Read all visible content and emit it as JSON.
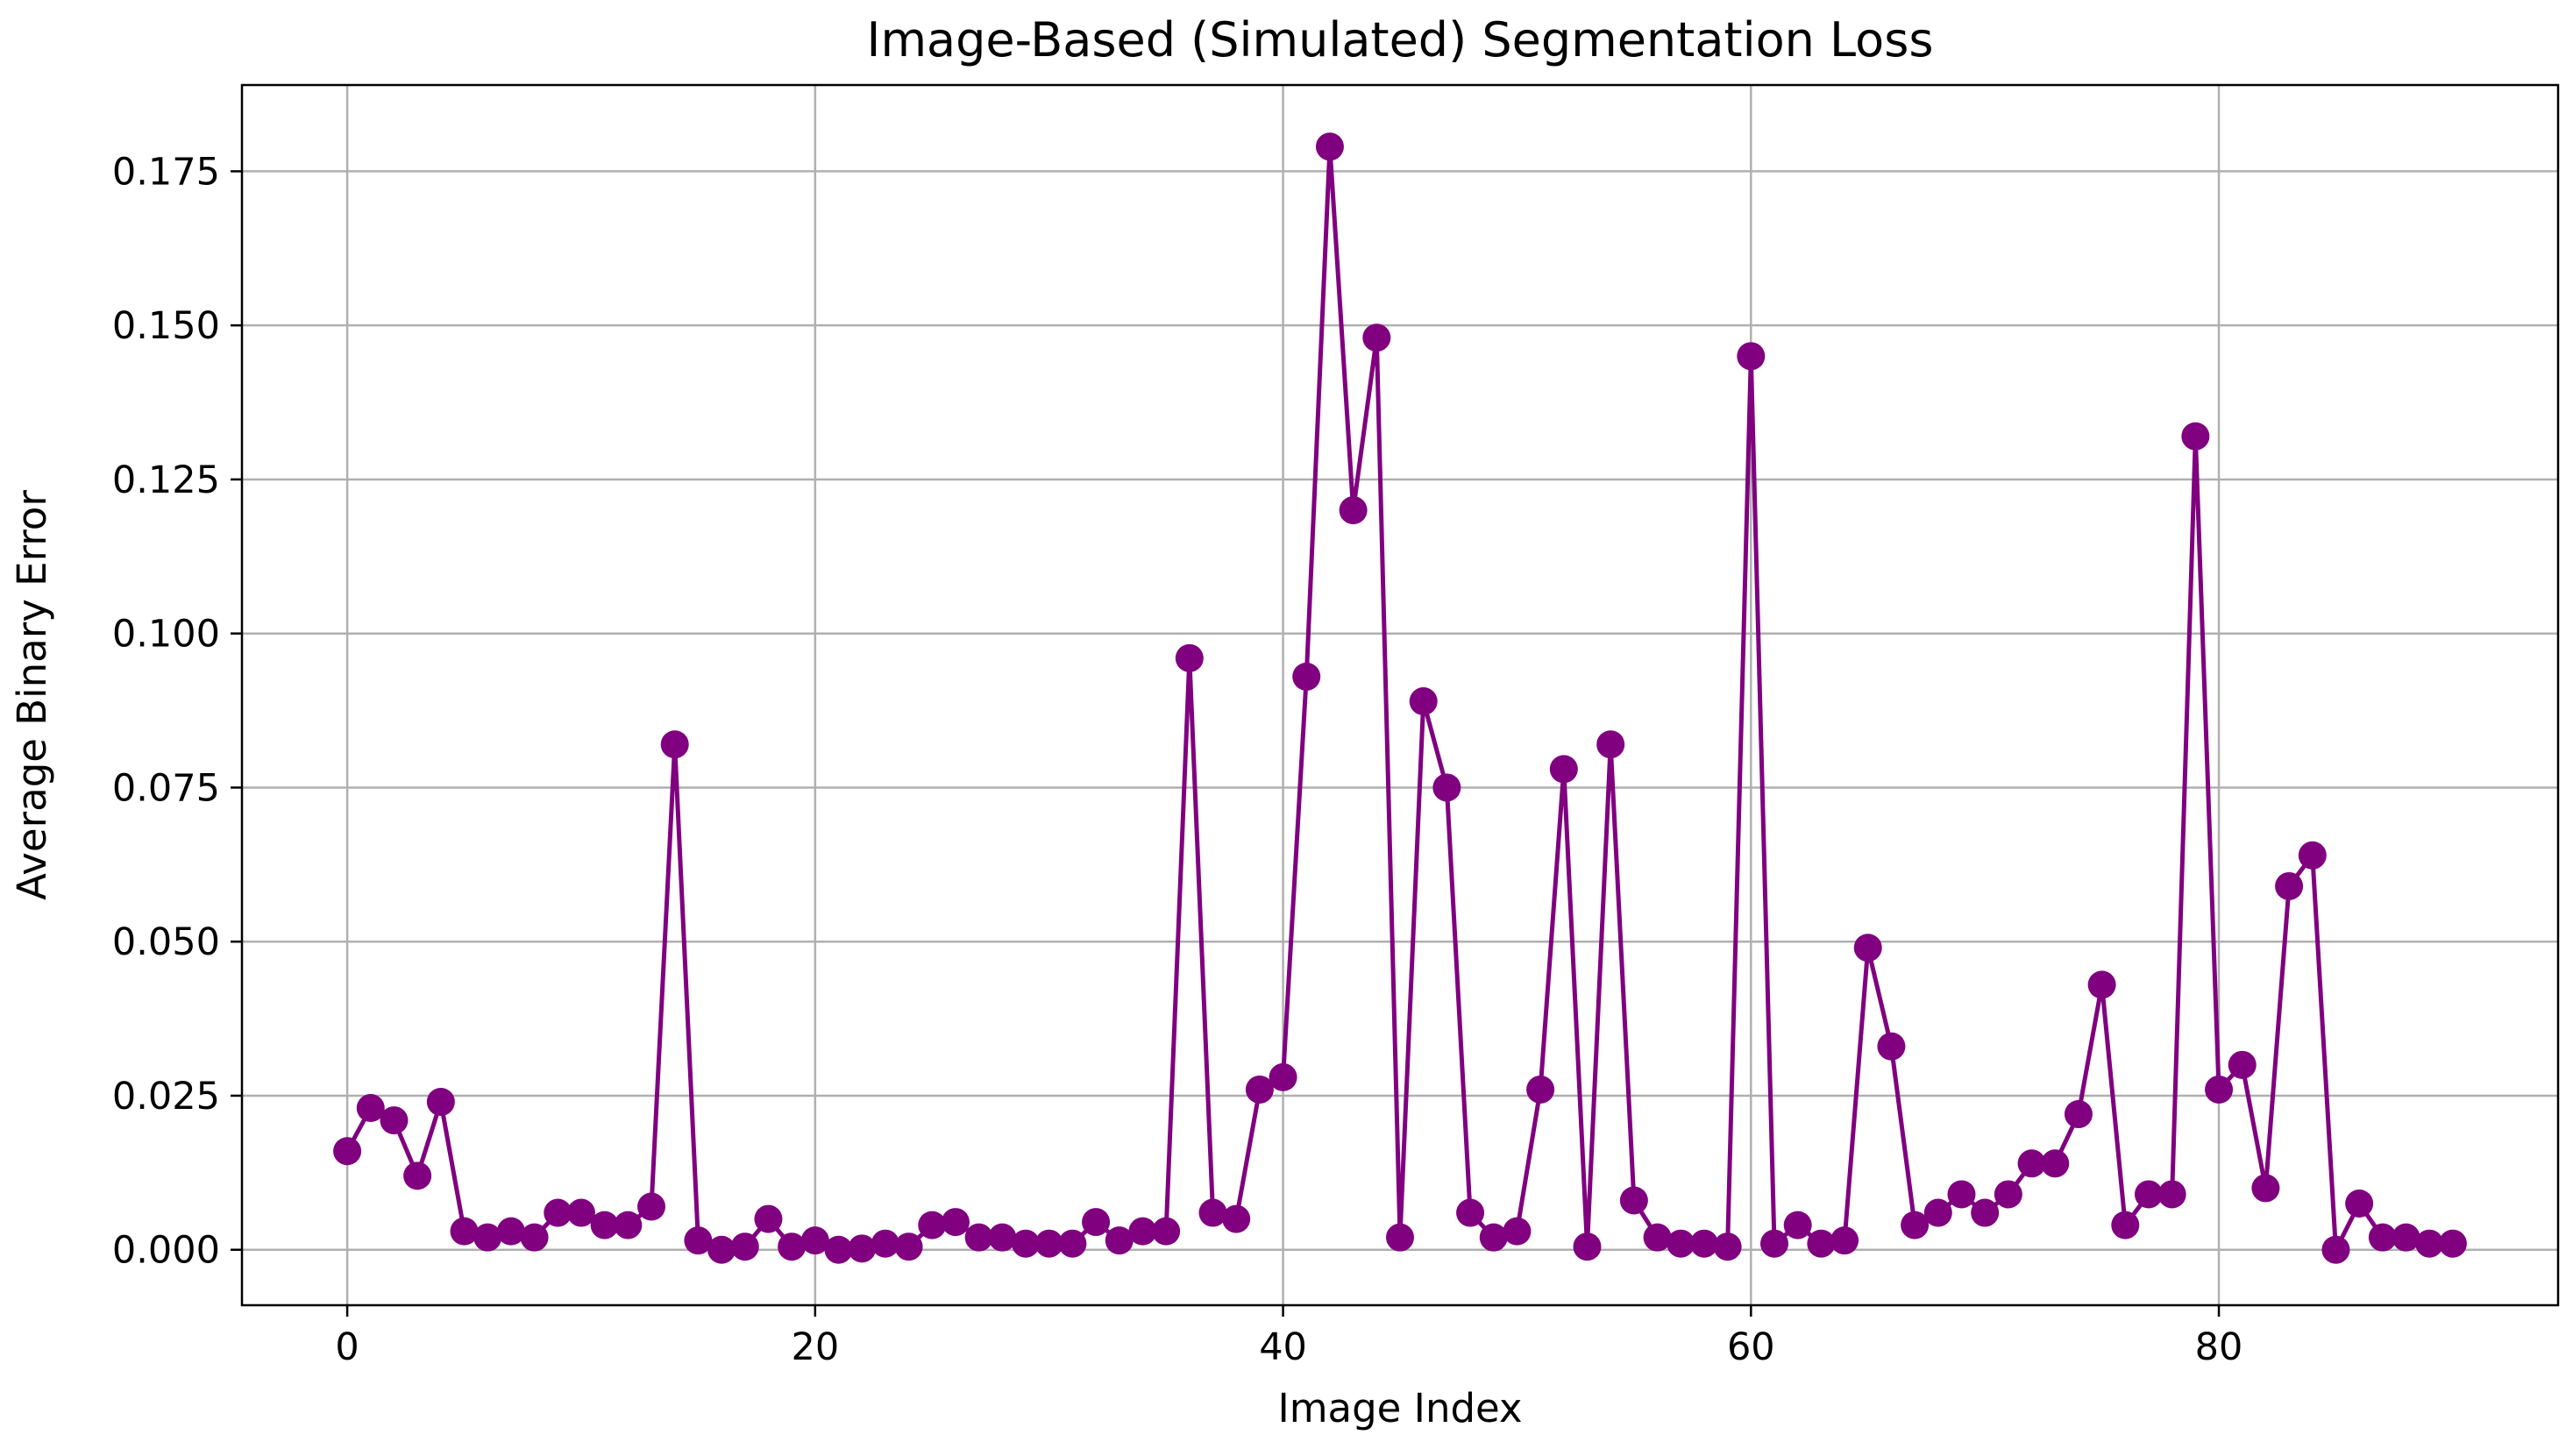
{
  "chart_data": {
    "type": "line",
    "title": "Image-Based (Simulated) Segmentation Loss",
    "xlabel": "Image Index",
    "ylabel": "Average Binary Error",
    "xlim": [
      -4.5,
      94.5
    ],
    "ylim": [
      -0.009,
      0.189
    ],
    "xticks": [
      0,
      20,
      40,
      60,
      80
    ],
    "yticks": [
      0.0,
      0.025,
      0.05,
      0.075,
      0.1,
      0.125,
      0.15,
      0.175
    ],
    "xtick_labels": [
      "0",
      "20",
      "40",
      "60",
      "80"
    ],
    "ytick_labels": [
      "0.000",
      "0.025",
      "0.050",
      "0.075",
      "0.100",
      "0.125",
      "0.150",
      "0.175"
    ],
    "grid": true,
    "line_color": "#800080",
    "marker": "circle",
    "series": [
      {
        "x": [
          0,
          1,
          2,
          3,
          4,
          5,
          6,
          7,
          8,
          9,
          10,
          11,
          12,
          13,
          14,
          15,
          16,
          17,
          18,
          19,
          20,
          21,
          22,
          23,
          24,
          25,
          26,
          27,
          28,
          29,
          30,
          31,
          32,
          33,
          34,
          35,
          36,
          37,
          38,
          39,
          40,
          41,
          42,
          43,
          44,
          45,
          46,
          47,
          48,
          49,
          50,
          51,
          52,
          53,
          54,
          55,
          56,
          57,
          58,
          59,
          60,
          61,
          62,
          63,
          64,
          65,
          66,
          67,
          68,
          69,
          70,
          71,
          72,
          73,
          74,
          75,
          76,
          77,
          78,
          79,
          80,
          81,
          82,
          83,
          84,
          85,
          86,
          87,
          88,
          89,
          90
        ],
        "values": [
          0.016,
          0.023,
          0.021,
          0.012,
          0.024,
          0.003,
          0.002,
          0.003,
          0.002,
          0.006,
          0.006,
          0.004,
          0.004,
          0.007,
          0.082,
          0.0015,
          0.0,
          0.0005,
          0.005,
          0.0005,
          0.0015,
          0.0,
          0.0002,
          0.001,
          0.0005,
          0.004,
          0.0045,
          0.002,
          0.002,
          0.001,
          0.001,
          0.001,
          0.0045,
          0.0015,
          0.003,
          0.003,
          0.096,
          0.006,
          0.005,
          0.026,
          0.028,
          0.093,
          0.179,
          0.12,
          0.148,
          0.002,
          0.089,
          0.075,
          0.006,
          0.002,
          0.003,
          0.026,
          0.078,
          0.0005,
          0.082,
          0.008,
          0.002,
          0.001,
          0.001,
          0.0005,
          0.145,
          0.001,
          0.004,
          0.001,
          0.0015,
          0.049,
          0.033,
          0.004,
          0.006,
          0.009,
          0.006,
          0.009,
          0.014,
          0.014,
          0.022,
          0.043,
          0.004,
          0.009,
          0.009,
          0.132,
          0.026,
          0.03,
          0.01,
          0.059,
          0.064,
          0.0,
          0.0075,
          0.002,
          0.002,
          0.001,
          0.001
        ]
      }
    ]
  }
}
